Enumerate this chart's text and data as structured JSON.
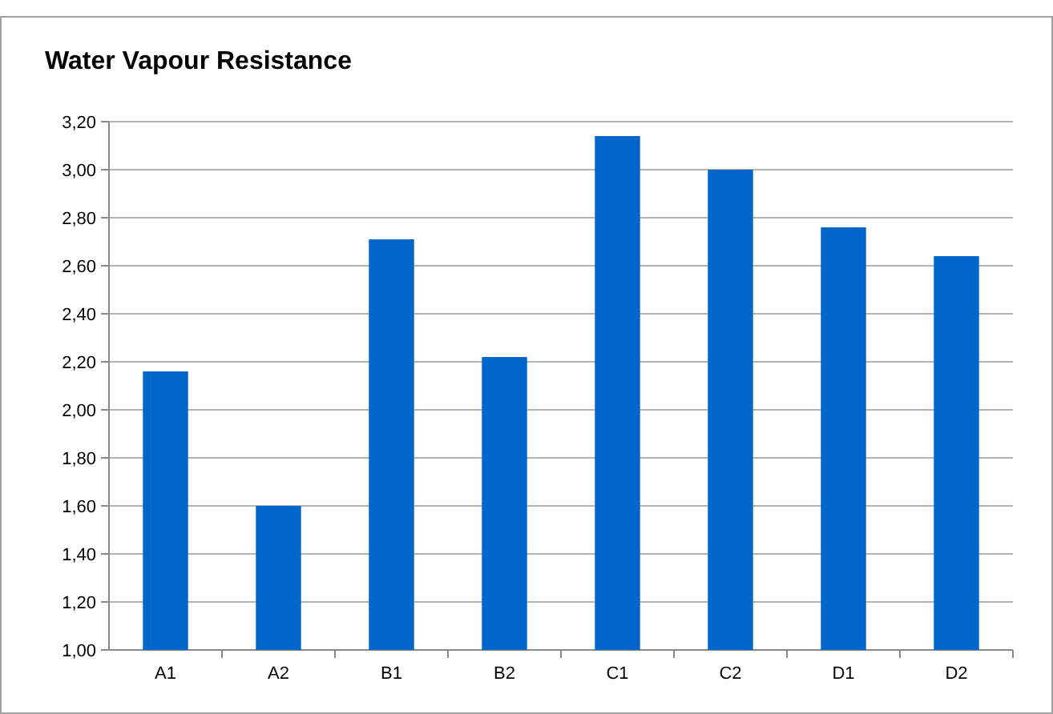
{
  "chart_data": {
    "type": "bar",
    "title": "Water Vapour Resistance",
    "categories": [
      "A1",
      "A2",
      "B1",
      "B2",
      "C1",
      "C2",
      "D1",
      "D2"
    ],
    "values": [
      2.16,
      1.6,
      2.71,
      2.22,
      3.14,
      3.0,
      2.76,
      2.64
    ],
    "color": "#0066cc",
    "ylim": [
      1,
      3.2
    ],
    "yticks": [
      {
        "value": 1,
        "label": "1,00"
      },
      {
        "value": 1.2,
        "label": "1,20"
      },
      {
        "value": 1.4,
        "label": "1,40"
      },
      {
        "value": 1.6,
        "label": "1,60"
      },
      {
        "value": 1.8,
        "label": "1,80"
      },
      {
        "value": 2,
        "label": "2,00"
      },
      {
        "value": 2.2,
        "label": "2,20"
      },
      {
        "value": 2.4,
        "label": "2,40"
      },
      {
        "value": 2.6,
        "label": "2,60"
      },
      {
        "value": 2.8,
        "label": "2,80"
      },
      {
        "value": 3,
        "label": "3,00"
      },
      {
        "value": 3.2,
        "label": "3,20"
      }
    ],
    "grid": "y"
  }
}
